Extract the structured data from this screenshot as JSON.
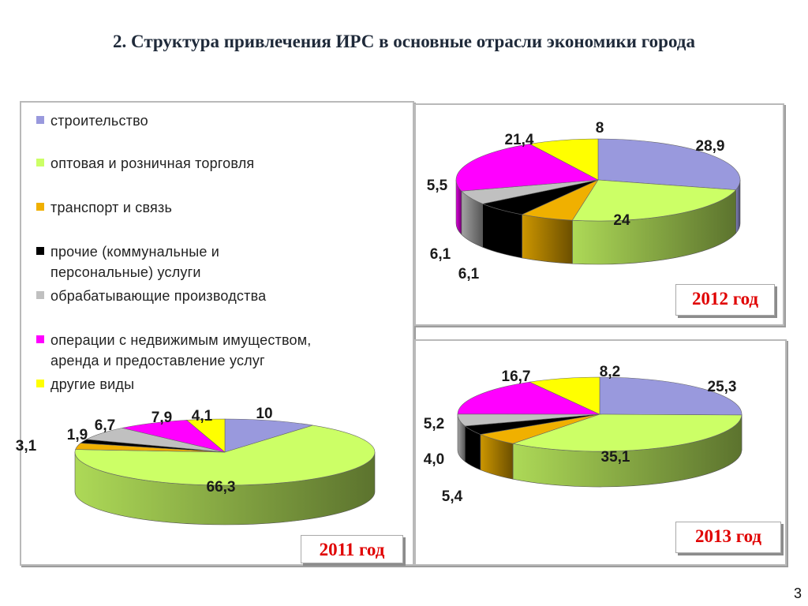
{
  "title": "2. Структура привлечения ИРС в основные отрасли экономики города",
  "page_number": "3",
  "legend": [
    {
      "label": "строительство",
      "color": "#9999dd"
    },
    {
      "label": "оптовая  и розничная  торговля",
      "color": "#ccff66"
    },
    {
      "label": "транспорт  и связь",
      "color": "#f0b000"
    },
    {
      "label": "прочие  (коммунальные  и\nперсональные)  услуги",
      "color": "#000000"
    },
    {
      "label": "обрабатывающие  производства",
      "color": "#c0c0c0"
    },
    {
      "label": "операции  с недвижимым  имуществом,\nаренда и предоставление  услуг",
      "color": "#ff00ff"
    },
    {
      "label": "другие виды",
      "color": "#ffff00"
    }
  ],
  "chart_data": [
    {
      "type": "pie",
      "year_label": "2011 год",
      "categories": [
        "строительство",
        "оптовая и розничная торговля",
        "транспорт и связь",
        "прочие (коммунальные и персональные) услуги",
        "обрабатывающие производства",
        "операции с недвижимым имуществом, аренда и предоставление услуг",
        "другие виды"
      ],
      "values": [
        10,
        66.3,
        3.1,
        1.9,
        6.7,
        7.9,
        4.1
      ],
      "labels": [
        "10",
        "66,3",
        "3,1",
        "1,9",
        "6,7",
        "7,9",
        "4,1"
      ]
    },
    {
      "type": "pie",
      "year_label": "2012 год",
      "categories": [
        "строительство",
        "оптовая и розничная торговля",
        "транспорт и связь",
        "прочие (коммунальные и персональные) услуги",
        "обрабатывающие производства",
        "операции с недвижимым имуществом, аренда и предоставление услуг",
        "другие виды"
      ],
      "values": [
        28.9,
        24,
        6.1,
        6.1,
        5.5,
        21.4,
        8
      ],
      "labels": [
        "28,9",
        "24",
        "6,1",
        "6,1",
        "5,5",
        "21,4",
        "8"
      ]
    },
    {
      "type": "pie",
      "year_label": "2013 год",
      "categories": [
        "строительство",
        "оптовая и розничная торговля",
        "транспорт и связь",
        "прочие (коммунальные и персональные) услуги",
        "обрабатывающие производства",
        "операции с недвижимым имуществом, аренда и предоставление услуг",
        "другие виды"
      ],
      "values": [
        25.3,
        35.1,
        5.4,
        4.0,
        5.2,
        16.7,
        8.2
      ],
      "labels": [
        "25,3",
        "35,1",
        "5,4",
        "4,0",
        "5,2",
        "16,7",
        "8,2"
      ]
    }
  ]
}
